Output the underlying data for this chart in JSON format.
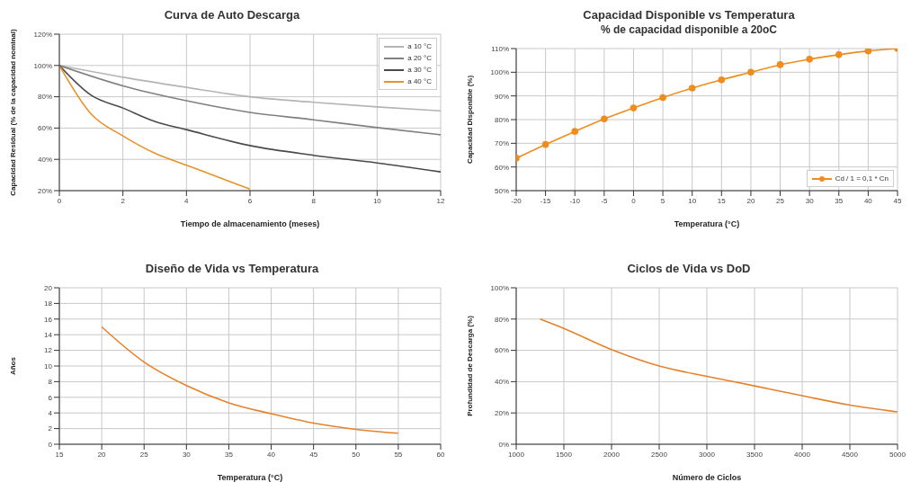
{
  "chart_data": [
    {
      "type": "line",
      "title": "Curva de Auto Descarga",
      "xlabel": "Tiempo de almacenamiento (meses)",
      "ylabel": "Capacidad Residual (% de la capacidad nominal)",
      "xlim": [
        0,
        12
      ],
      "xticks": [
        0,
        2,
        4,
        6,
        8,
        10,
        12
      ],
      "ylim": [
        20,
        120
      ],
      "yticks": [
        {
          "value": 20,
          "label": "20%"
        },
        {
          "value": 40,
          "label": "40%"
        },
        {
          "value": 60,
          "label": "60%"
        },
        {
          "value": 80,
          "label": "80%"
        },
        {
          "value": 100,
          "label": "100%"
        },
        {
          "value": 120,
          "label": "120%"
        }
      ],
      "grid": true,
      "legend": "top right",
      "marker": "none",
      "series": [
        {
          "name": "a 10 °C",
          "color": "#b4b4b4",
          "x": [
            0,
            2,
            4,
            6,
            8,
            10,
            12
          ],
          "values": [
            100,
            92.5,
            86,
            80,
            76.5,
            73.5,
            71
          ]
        },
        {
          "name": "a 20 °C",
          "color": "#808080",
          "x": [
            0,
            2,
            4,
            6,
            8,
            10,
            12
          ],
          "values": [
            100,
            87,
            77.5,
            70,
            65.3,
            60.3,
            55.7
          ]
        },
        {
          "name": "a 30 °C",
          "color": "#4a4a4a",
          "x": [
            0,
            1,
            2,
            3,
            4,
            6,
            8,
            10,
            12
          ],
          "values": [
            100,
            81,
            72.8,
            64.3,
            59,
            48.8,
            42.6,
            37.7,
            32
          ]
        },
        {
          "name": "a 40 °C",
          "color": "#e8922a",
          "x": [
            0,
            1,
            2,
            3,
            4,
            5,
            6
          ],
          "values": [
            100,
            69,
            55,
            44,
            36.3,
            28.6,
            21
          ]
        }
      ]
    },
    {
      "type": "line",
      "title": "Capacidad Disponible vs Temperatura",
      "subtitle": "% de capacidad disponible a 20oC",
      "xlabel": "Temperatura (°C)",
      "ylabel": "Capacidad Disponible (%)",
      "xlim": [
        -20,
        45
      ],
      "xticks": [
        -20,
        -15,
        -10,
        -5,
        0,
        5,
        10,
        15,
        20,
        25,
        30,
        35,
        40,
        45
      ],
      "ylim": [
        50,
        110
      ],
      "yticks": [
        {
          "value": 50,
          "label": "50%"
        },
        {
          "value": 60,
          "label": "60%"
        },
        {
          "value": 70,
          "label": "70%"
        },
        {
          "value": 80,
          "label": "80%"
        },
        {
          "value": 90,
          "label": "90%"
        },
        {
          "value": 100,
          "label": "100%"
        },
        {
          "value": 110,
          "label": "110%"
        }
      ],
      "grid": true,
      "legend": "bottom right",
      "marker": "circle",
      "series": [
        {
          "name": "Cd / 1 = 0,1 * Cn",
          "color": "#f08c1e",
          "x": [
            -20,
            -15,
            -10,
            -5,
            0,
            5,
            10,
            15,
            20,
            25,
            30,
            35,
            40,
            45
          ],
          "values": [
            63.7,
            69.5,
            75,
            80.3,
            84.9,
            89.3,
            93.3,
            96.8,
            100,
            103.2,
            105.5,
            107.4,
            109,
            110
          ]
        }
      ]
    },
    {
      "type": "line",
      "title": "Diseño de Vida vs Temperatura",
      "xlabel": "Temperatura (°C)",
      "ylabel": "Años",
      "xlim": [
        15,
        60
      ],
      "xticks": [
        15,
        20,
        25,
        30,
        35,
        40,
        45,
        50,
        55,
        60
      ],
      "ylim": [
        0,
        20
      ],
      "yticks": [
        0,
        2,
        4,
        6,
        8,
        10,
        12,
        14,
        16,
        18,
        20
      ],
      "grid": true,
      "marker": "none",
      "series": [
        {
          "color": "#e8822a",
          "x": [
            20,
            25,
            30,
            35,
            40,
            45,
            50,
            55
          ],
          "values": [
            15,
            10.5,
            7.5,
            5.3,
            3.9,
            2.7,
            1.9,
            1.4
          ]
        }
      ]
    },
    {
      "type": "line",
      "title": "Ciclos de Vida vs DoD",
      "xlabel": "Número de Ciclos",
      "ylabel": "Profundidad de Descarga (%)",
      "xlim": [
        1000,
        5000
      ],
      "xticks": [
        1000,
        1500,
        2000,
        2500,
        3000,
        3500,
        4000,
        4500,
        5000
      ],
      "ylim": [
        0,
        100
      ],
      "yticks": [
        {
          "value": 0,
          "label": "0%"
        },
        {
          "value": 20,
          "label": "20%"
        },
        {
          "value": 40,
          "label": "40%"
        },
        {
          "value": 60,
          "label": "60%"
        },
        {
          "value": 80,
          "label": "80%"
        },
        {
          "value": 100,
          "label": "100%"
        }
      ],
      "grid": true,
      "marker": "none",
      "series": [
        {
          "color": "#e8822a",
          "x": [
            1250,
            1500,
            2000,
            2500,
            3000,
            3500,
            4000,
            4500,
            5000
          ],
          "values": [
            80,
            74,
            60.5,
            50,
            43.4,
            37.3,
            31,
            25,
            20.7
          ]
        }
      ]
    }
  ]
}
